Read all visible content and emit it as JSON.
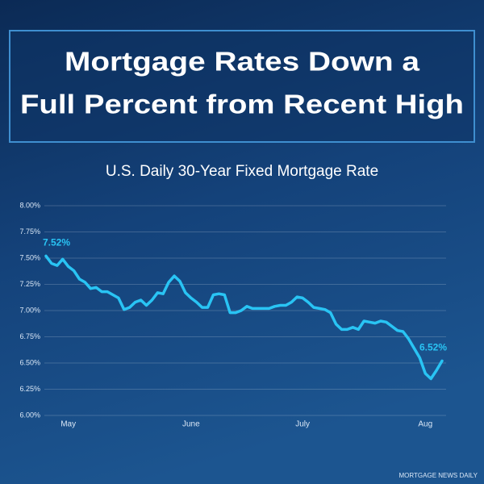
{
  "chart_data": {
    "type": "line",
    "headline": [
      "Mortgage Rates Down a",
      "Full Percent from Recent High"
    ],
    "title": "U.S. Daily 30-Year Fixed Mortgage Rate",
    "source": "MORTGAGE NEWS DAILY",
    "categories": [
      null,
      null,
      null,
      null,
      "May",
      null,
      null,
      null,
      null,
      null,
      null,
      null,
      null,
      null,
      null,
      null,
      null,
      null,
      null,
      null,
      null,
      null,
      null,
      null,
      null,
      null,
      "June",
      null,
      null,
      null,
      null,
      null,
      null,
      null,
      null,
      null,
      null,
      null,
      null,
      null,
      null,
      null,
      null,
      null,
      null,
      null,
      "July",
      null,
      null,
      null,
      null,
      null,
      null,
      null,
      null,
      null,
      null,
      null,
      null,
      null,
      null,
      null,
      null,
      null,
      null,
      null,
      null,
      null,
      "Aug",
      null,
      null,
      null
    ],
    "series": [
      {
        "color": "#29c4f4",
        "values": [
          7.52,
          7.45,
          7.43,
          7.49,
          7.42,
          7.38,
          7.3,
          7.27,
          7.21,
          7.22,
          7.18,
          7.18,
          7.15,
          7.12,
          7.01,
          7.03,
          7.08,
          7.1,
          7.05,
          7.1,
          7.17,
          7.16,
          7.27,
          7.33,
          7.28,
          7.17,
          7.12,
          7.08,
          7.03,
          7.03,
          7.15,
          7.16,
          7.15,
          6.98,
          6.98,
          7.0,
          7.04,
          7.02,
          7.02,
          7.02,
          7.02,
          7.04,
          7.05,
          7.05,
          7.08,
          7.13,
          7.12,
          7.08,
          7.03,
          7.02,
          7.01,
          6.98,
          6.87,
          6.82,
          6.82,
          6.84,
          6.82,
          6.9,
          6.89,
          6.88,
          6.9,
          6.89,
          6.85,
          6.81,
          6.8,
          6.73,
          6.64,
          6.55,
          6.4,
          6.35,
          6.43,
          6.52
        ],
        "value_labels": [
          "7.52%",
          null,
          null,
          null,
          null,
          null,
          null,
          null,
          null,
          null,
          null,
          null,
          null,
          null,
          null,
          null,
          null,
          null,
          null,
          null,
          null,
          null,
          null,
          null,
          null,
          null,
          null,
          null,
          null,
          null,
          null,
          null,
          null,
          null,
          null,
          null,
          null,
          null,
          null,
          null,
          null,
          null,
          null,
          null,
          null,
          null,
          null,
          null,
          null,
          null,
          null,
          null,
          null,
          null,
          null,
          null,
          null,
          null,
          null,
          null,
          null,
          null,
          null,
          null,
          null,
          null,
          null,
          null,
          null,
          null,
          null,
          "6.52%"
        ]
      }
    ],
    "ylim": [
      6,
      8
    ],
    "yticks": [
      {
        "value": 6,
        "label": "6.00%"
      },
      {
        "value": 6.25,
        "label": "6.25%"
      },
      {
        "value": 6.5,
        "label": "6.50%"
      },
      {
        "value": 6.75,
        "label": "6.75%"
      },
      {
        "value": 7,
        "label": "7.00%"
      },
      {
        "value": 7.25,
        "label": "7.25%"
      },
      {
        "value": 7.5,
        "label": "7.50%"
      },
      {
        "value": 7.75,
        "label": "7.75%"
      },
      {
        "value": 8,
        "label": "8.00%"
      }
    ],
    "grid": true
  }
}
